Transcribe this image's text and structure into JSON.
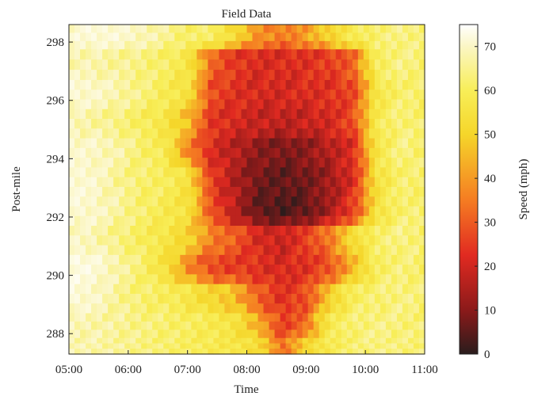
{
  "chart_data": {
    "type": "heatmap",
    "title": "Field Data",
    "xlabel": "Time",
    "ylabel": "Post-mile",
    "colorbar_label": "Speed (mph)",
    "x_ticks": [
      "05:00",
      "06:00",
      "07:00",
      "08:00",
      "09:00",
      "10:00",
      "11:00"
    ],
    "y_ticks": [
      "288",
      "290",
      "292",
      "294",
      "296",
      "298"
    ],
    "colorbar_ticks": [
      "0",
      "10",
      "20",
      "30",
      "40",
      "50",
      "60",
      "70"
    ],
    "x_range_hours": [
      5,
      11
    ],
    "y_range_postmile": [
      287.3,
      298.6
    ],
    "colorbar_range": [
      0,
      75
    ],
    "colormap": [
      "#2a1c1c",
      "#8b1a1a",
      "#e12a21",
      "#f57c22",
      "#f5d62a",
      "#f8ee58",
      "#fbf6c4",
      "#ffffff"
    ],
    "rows": [
      {
        "postmile": 298.3,
        "speeds": [
          66,
          68,
          67,
          64,
          60,
          55,
          55,
          45,
          35,
          32,
          36,
          44,
          52,
          56,
          58,
          57
        ]
      },
      {
        "postmile": 297.2,
        "speeds": [
          63,
          62,
          60,
          58,
          55,
          50,
          30,
          23,
          21,
          21,
          22,
          24,
          29,
          54,
          58,
          56
        ]
      },
      {
        "postmile": 296.2,
        "speeds": [
          67,
          66,
          62,
          58,
          53,
          48,
          26,
          22,
          20,
          20,
          21,
          22,
          25,
          50,
          56,
          55
        ]
      },
      {
        "postmile": 295.2,
        "speeds": [
          63,
          61,
          58,
          54,
          50,
          40,
          23,
          20,
          18,
          17,
          18,
          20,
          26,
          52,
          57,
          55
        ]
      },
      {
        "postmile": 294.2,
        "speeds": [
          66,
          65,
          62,
          56,
          52,
          34,
          21,
          16,
          11,
          9,
          11,
          16,
          21,
          50,
          58,
          55
        ]
      },
      {
        "postmile": 293.2,
        "speeds": [
          68,
          66,
          60,
          56,
          54,
          48,
          24,
          15,
          8,
          6,
          8,
          13,
          21,
          48,
          56,
          55
        ]
      },
      {
        "postmile": 292.2,
        "speeds": [
          67,
          66,
          61,
          56,
          52,
          48,
          27,
          16,
          6,
          4,
          6,
          14,
          24,
          48,
          56,
          56
        ]
      },
      {
        "postmile": 291.2,
        "speeds": [
          65,
          63,
          58,
          54,
          50,
          44,
          33,
          28,
          20,
          18,
          24,
          32,
          46,
          55,
          58,
          56
        ]
      },
      {
        "postmile": 290.2,
        "speeds": [
          70,
          68,
          62,
          56,
          48,
          35,
          26,
          24,
          22,
          20,
          22,
          27,
          40,
          54,
          57,
          55
        ]
      },
      {
        "postmile": 289.2,
        "speeds": [
          68,
          66,
          60,
          56,
          54,
          50,
          44,
          40,
          28,
          22,
          26,
          42,
          54,
          56,
          58,
          56
        ]
      },
      {
        "postmile": 288.2,
        "speeds": [
          63,
          62,
          60,
          58,
          56,
          54,
          52,
          48,
          38,
          24,
          30,
          52,
          56,
          58,
          57,
          56
        ]
      },
      {
        "postmile": 287.5,
        "speeds": [
          62,
          62,
          60,
          58,
          56,
          54,
          52,
          50,
          46,
          30,
          44,
          52,
          56,
          58,
          57,
          56
        ]
      }
    ]
  }
}
